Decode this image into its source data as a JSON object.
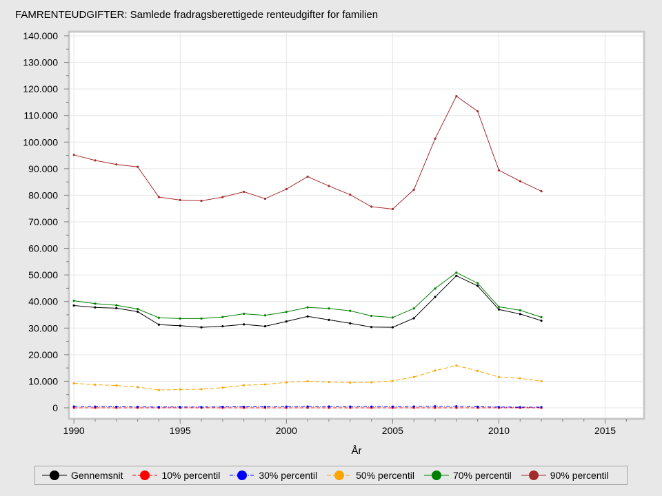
{
  "chart_data": {
    "type": "line",
    "title": "FAMRENTEUDGIFTER: Samlede fradragsberettigede renteudgifter for familien",
    "xlabel": "År",
    "ylabel": "",
    "xlim": [
      1989.8,
      2016.8
    ],
    "ylim": [
      0,
      140000
    ],
    "xticks": [
      1990,
      1995,
      2000,
      2005,
      2010,
      2015
    ],
    "xtick_labels": [
      "1990",
      "1995",
      "2000",
      "2005",
      "2010",
      "2015"
    ],
    "yticks": [
      0,
      10000,
      20000,
      30000,
      40000,
      50000,
      60000,
      70000,
      80000,
      90000,
      100000,
      110000,
      120000,
      130000,
      140000
    ],
    "ytick_labels": [
      "0",
      "10.000",
      "20.000",
      "30.000",
      "40.000",
      "50.000",
      "60.000",
      "70.000",
      "80.000",
      "90.000",
      "100.000",
      "110.000",
      "120.000",
      "130.000",
      "140.000"
    ],
    "grid": true,
    "legend_position": "bottom",
    "x": [
      1990,
      1991,
      1992,
      1993,
      1994,
      1995,
      1996,
      1997,
      1998,
      1999,
      2000,
      2001,
      2002,
      2003,
      2004,
      2005,
      2006,
      2007,
      2008,
      2009,
      2010,
      2011,
      2012
    ],
    "series": [
      {
        "name": "Gennemsnit",
        "color": "#000000",
        "dash": "",
        "values": [
          38500,
          37800,
          37500,
          36200,
          31300,
          30900,
          30300,
          30700,
          31400,
          30700,
          32500,
          34400,
          33100,
          31800,
          30400,
          30300,
          33700,
          41700,
          49700,
          45900,
          37000,
          35300,
          32800
        ]
      },
      {
        "name": "10% percentil",
        "color": "#ff0000",
        "dash": "5,3",
        "values": [
          0,
          0,
          0,
          0,
          0,
          0,
          0,
          0,
          0,
          0,
          0,
          0,
          0,
          0,
          0,
          0,
          0,
          0,
          0,
          0,
          0,
          0,
          0
        ]
      },
      {
        "name": "30% percentil",
        "color": "#0000ff",
        "dash": "5,2,1,2",
        "values": [
          500,
          450,
          400,
          350,
          300,
          300,
          300,
          350,
          400,
          400,
          450,
          500,
          500,
          450,
          450,
          450,
          500,
          600,
          600,
          400,
          300,
          250,
          250
        ]
      },
      {
        "name": "50% percentil",
        "color": "#ffa500",
        "dash": "6,3",
        "values": [
          9200,
          8700,
          8400,
          7800,
          6700,
          6900,
          7000,
          7600,
          8500,
          8800,
          9600,
          10000,
          9700,
          9500,
          9600,
          10100,
          11600,
          14000,
          15900,
          13900,
          11600,
          11100,
          10000
        ]
      },
      {
        "name": "70% percentil",
        "color": "#008000",
        "dash": "",
        "values": [
          40300,
          39200,
          38600,
          37200,
          33900,
          33600,
          33600,
          34200,
          35400,
          34800,
          36100,
          37800,
          37400,
          36500,
          34600,
          34000,
          37400,
          44900,
          50900,
          46900,
          38000,
          36700,
          34100
        ]
      },
      {
        "name": "90% percentil",
        "color": "#a52a2a",
        "dash": "",
        "values": [
          95200,
          93100,
          91600,
          90700,
          79300,
          78200,
          77900,
          79300,
          81300,
          78700,
          82300,
          87000,
          83500,
          80200,
          75700,
          74800,
          82100,
          101300,
          117300,
          111600,
          89400,
          85300,
          81500
        ]
      }
    ]
  }
}
